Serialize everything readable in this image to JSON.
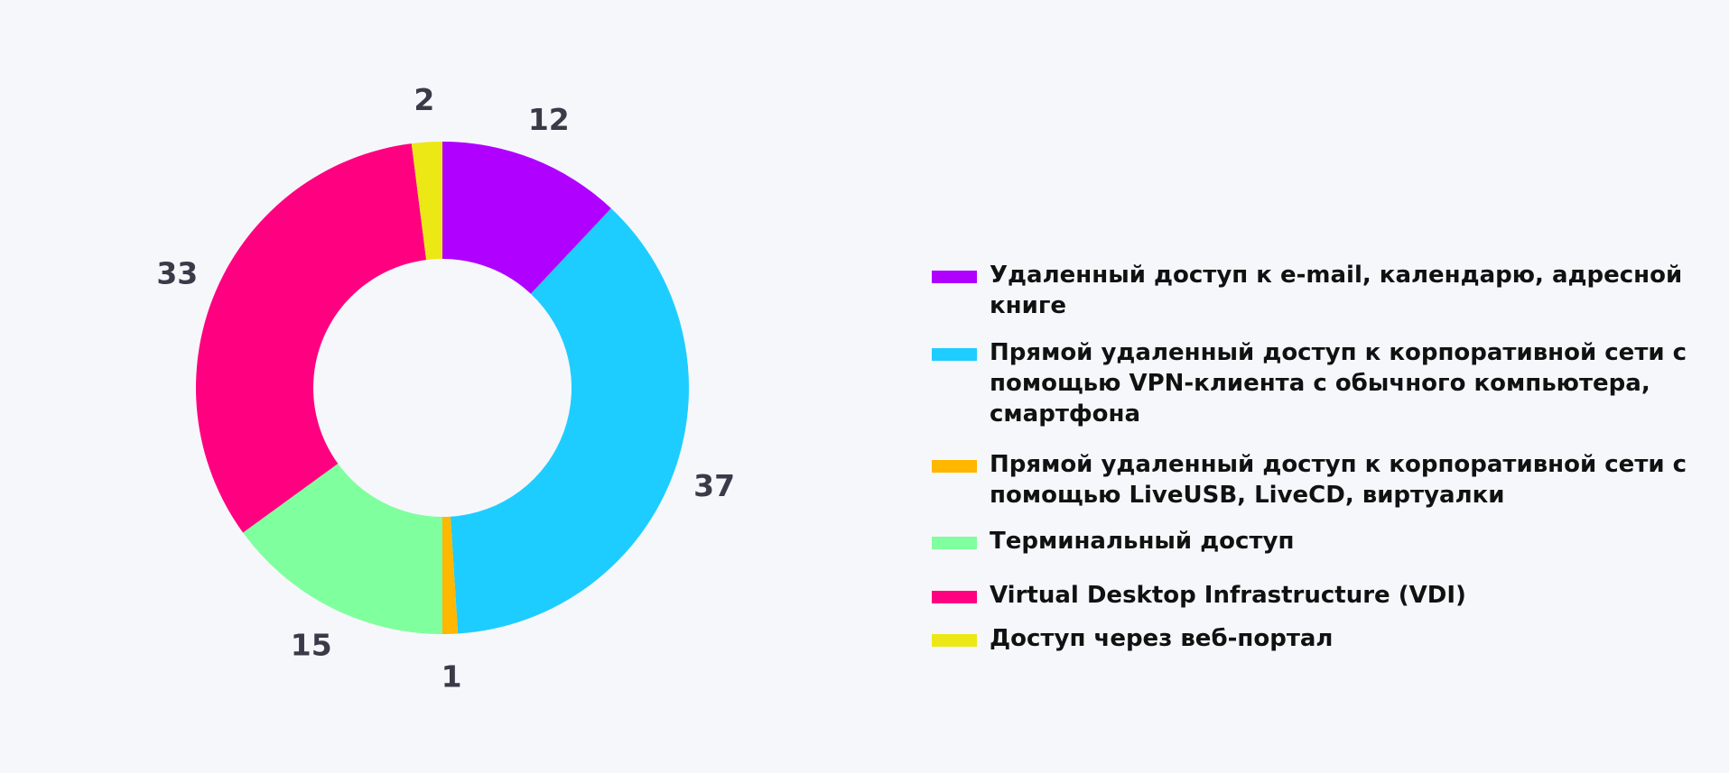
{
  "chart_data": {
    "type": "pie",
    "donut": true,
    "start_angle_deg": 0,
    "direction": "clockwise",
    "legend_position": "right",
    "title": "",
    "series": [
      {
        "label": "Удаленный доступ к e-mail, календарю, адресной книге",
        "value": 12,
        "color": "#b000ff"
      },
      {
        "label": "Прямой удаленный доступ к корпоративной сети с помощью VPN-клиента с обычного компьютера, смартфона",
        "value": 37,
        "color": "#1ecdff"
      },
      {
        "label": "Прямой удаленный доступ к корпоративной сети с помощью LiveUSB, LiveCD, виртуалки",
        "value": 1,
        "color": "#ffb700"
      },
      {
        "label": "Терминальный доступ",
        "value": 15,
        "color": "#80ff9e"
      },
      {
        "label": "Virtual Desktop Infrastructure (VDI)",
        "value": 33,
        "color": "#ff0080"
      },
      {
        "label": "Доступ через веб-портал",
        "value": 2,
        "color": "#ece816"
      }
    ]
  }
}
